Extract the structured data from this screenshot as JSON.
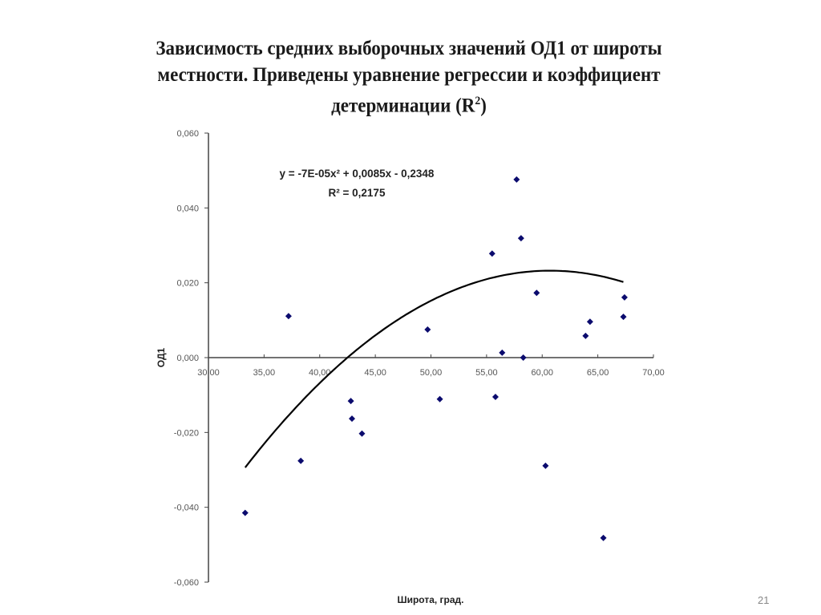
{
  "slide": {
    "title_line1": "Зависимость средних выборочных значений ОД1 от широты",
    "title_line2": "местности. Приведены уравнение регрессии и коэффициент",
    "title_line3_prefix": "детерминации (R",
    "title_line3_sup": "2",
    "title_line3_suffix": ")",
    "page_number": "21"
  },
  "chart_data": {
    "type": "scatter",
    "title": "Зависимость средних выборочных значений ОД1 от широты местности. Приведены уравнение регрессии и коэффициент детерминации (R²)",
    "xlabel": "Широта, град.",
    "ylabel": "ОД1",
    "xlim": [
      30,
      70
    ],
    "ylim": [
      -0.06,
      0.06
    ],
    "x_ticks": [
      "30,00",
      "35,00",
      "40,00",
      "45,00",
      "50,00",
      "55,00",
      "60,00",
      "65,00",
      "70,00"
    ],
    "y_ticks": [
      "0,060",
      "0,040",
      "0,020",
      "0,000",
      "-0,020",
      "-0,040",
      "-0,060"
    ],
    "grid": false,
    "legend": null,
    "marker": "diamond",
    "marker_color": "#0b0b6e",
    "series": [
      {
        "name": "ОД1",
        "points": [
          {
            "x": 33.3,
            "y": -0.0415
          },
          {
            "x": 37.2,
            "y": 0.0111
          },
          {
            "x": 38.3,
            "y": -0.0276
          },
          {
            "x": 42.8,
            "y": -0.0116
          },
          {
            "x": 42.9,
            "y": -0.0163
          },
          {
            "x": 43.8,
            "y": -0.0203
          },
          {
            "x": 49.7,
            "y": 0.0075
          },
          {
            "x": 50.8,
            "y": -0.0111
          },
          {
            "x": 55.5,
            "y": 0.0278
          },
          {
            "x": 55.8,
            "y": -0.0105
          },
          {
            "x": 56.4,
            "y": 0.0013
          },
          {
            "x": 57.7,
            "y": 0.0476
          },
          {
            "x": 58.1,
            "y": 0.0319
          },
          {
            "x": 58.3,
            "y": 0.0
          },
          {
            "x": 59.5,
            "y": 0.0173
          },
          {
            "x": 60.3,
            "y": -0.0289
          },
          {
            "x": 63.9,
            "y": 0.0058
          },
          {
            "x": 64.3,
            "y": 0.0096
          },
          {
            "x": 65.5,
            "y": -0.0482
          },
          {
            "x": 67.3,
            "y": 0.0109
          },
          {
            "x": 67.4,
            "y": 0.0161
          }
        ]
      }
    ],
    "trendline": {
      "type": "polynomial",
      "order": 2,
      "coefficients": {
        "a": -7e-05,
        "b": 0.0085,
        "c": -0.2348
      },
      "x_range": [
        33.3,
        67.5
      ],
      "equation_label": "y = -7E-05x² + 0,0085x - 0,2348",
      "r2_label": "R² = 0,2175",
      "color": "#000000"
    },
    "annotations": [
      "y = -7E-05x² + 0,0085x - 0,2348",
      "R² = 0,2175"
    ]
  }
}
